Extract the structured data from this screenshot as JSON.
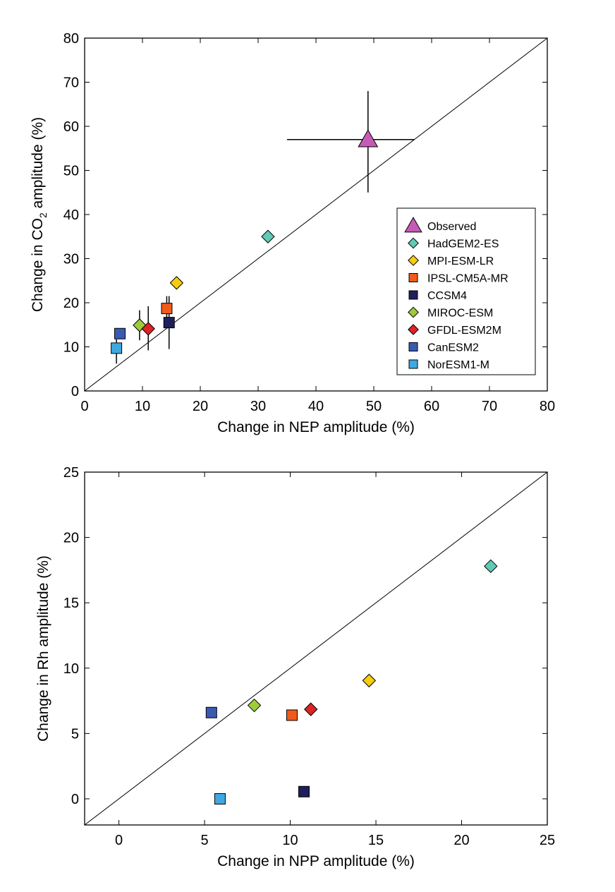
{
  "chart_data": [
    {
      "type": "scatter",
      "xlabel": "Change in NEP amplitude (%)",
      "ylabel_parts": [
        "Change in CO",
        "2",
        " amplitude (%)"
      ],
      "xlim": [
        0,
        80
      ],
      "ylim": [
        0,
        80
      ],
      "xticks": [
        0,
        10,
        20,
        30,
        40,
        50,
        60,
        70,
        80
      ],
      "yticks": [
        0,
        10,
        20,
        30,
        40,
        50,
        60,
        70,
        80
      ],
      "grid": false,
      "legend_position": "lower-right",
      "reference_line": "1:1",
      "series": [
        {
          "name": "Observed",
          "marker": "triangle",
          "color": "#c55bb5",
          "x": 49,
          "y": 57,
          "xerr": [
            35,
            57
          ],
          "yerr": [
            45,
            68
          ]
        },
        {
          "name": "HadGEM2-ES",
          "marker": "diamond",
          "color": "#5fcbb6",
          "x": 31.7,
          "y": 35
        },
        {
          "name": "MPI-ESM-LR",
          "marker": "diamond",
          "color": "#f5cc10",
          "x": 15.9,
          "y": 24.5
        },
        {
          "name": "IPSL-CM5A-MR",
          "marker": "square",
          "color": "#f05a1a",
          "x": 14.2,
          "y": 18.7,
          "yerr": [
            16.5,
            21.5
          ]
        },
        {
          "name": "CCSM4",
          "marker": "square",
          "color": "#1f1f5c",
          "x": 14.6,
          "y": 15.5,
          "yerr": [
            9.5,
            21.5
          ]
        },
        {
          "name": "MIROC-ESM",
          "marker": "diamond",
          "color": "#9fcb3a",
          "x": 9.5,
          "y": 14.9,
          "yerr": [
            11.5,
            18.3
          ]
        },
        {
          "name": "GFDL-ESM2M",
          "marker": "diamond",
          "color": "#dc2326",
          "x": 11,
          "y": 14.1,
          "yerr": [
            9.2,
            19.2
          ]
        },
        {
          "name": "CanESM2",
          "marker": "square",
          "color": "#3a5ab2",
          "x": 6.1,
          "y": 13
        },
        {
          "name": "NorESM1-M",
          "marker": "square",
          "color": "#40a8e0",
          "x": 5.5,
          "y": 9.7,
          "yerr": [
            6.2,
            11.7
          ]
        }
      ]
    },
    {
      "type": "scatter",
      "xlabel": "Change in NPP amplitude (%)",
      "ylabel": "Change in Rh amplitude (%)",
      "xlim": [
        -2,
        25
      ],
      "ylim": [
        -2,
        25
      ],
      "xticks": [
        0,
        5,
        10,
        15,
        20,
        25
      ],
      "yticks": [
        0,
        5,
        10,
        15,
        20,
        25
      ],
      "grid": false,
      "reference_line": "1:1",
      "series": [
        {
          "name": "HadGEM2-ES",
          "marker": "diamond",
          "color": "#5fcbb6",
          "x": 21.7,
          "y": 17.8
        },
        {
          "name": "MPI-ESM-LR",
          "marker": "diamond",
          "color": "#f5cc10",
          "x": 14.6,
          "y": 9.05
        },
        {
          "name": "IPSL-CM5A-MR",
          "marker": "square",
          "color": "#f05a1a",
          "x": 10.1,
          "y": 6.4
        },
        {
          "name": "CCSM4",
          "marker": "square",
          "color": "#1f1f5c",
          "x": 10.8,
          "y": 0.55
        },
        {
          "name": "MIROC-ESM",
          "marker": "diamond",
          "color": "#9fcb3a",
          "x": 7.9,
          "y": 7.15
        },
        {
          "name": "GFDL-ESM2M",
          "marker": "diamond",
          "color": "#dc2326",
          "x": 11.2,
          "y": 6.85
        },
        {
          "name": "CanESM2",
          "marker": "square",
          "color": "#3a5ab2",
          "x": 5.4,
          "y": 6.6
        },
        {
          "name": "NorESM1-M",
          "marker": "square",
          "color": "#40a8e0",
          "x": 5.9,
          "y": 0
        }
      ]
    }
  ]
}
